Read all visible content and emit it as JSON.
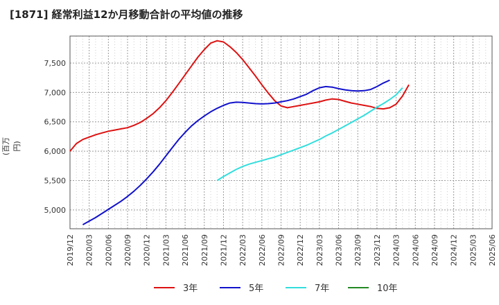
{
  "chart_data": {
    "type": "line",
    "title": "[1871]  経常利益12か月移動合計の平均値の推移",
    "ylabel": "(百万円)",
    "xlabel": "",
    "ylim": [
      4680,
      7960
    ],
    "yticks": [
      5000,
      5500,
      6000,
      6500,
      7000,
      7500
    ],
    "ytick_labels": [
      "5,000",
      "5,500",
      "6,000",
      "6,500",
      "7,000",
      "7,500"
    ],
    "xlim": [
      0,
      66
    ],
    "xticks": [
      0,
      3,
      6,
      9,
      12,
      15,
      18,
      21,
      24,
      27,
      30,
      33,
      36,
      39,
      42,
      45,
      48,
      51,
      54,
      57,
      60,
      63,
      66
    ],
    "xtick_labels": [
      "2019/12",
      "2020/03",
      "2020/06",
      "2020/09",
      "2020/12",
      "2021/03",
      "2021/06",
      "2021/09",
      "2021/12",
      "2022/03",
      "2022/06",
      "2022/09",
      "2022/12",
      "2023/03",
      "2023/06",
      "2023/09",
      "2023/12",
      "2024/03",
      "2024/06",
      "2024/09",
      "2024/12",
      "2025/03",
      "2025/06"
    ],
    "grid": true,
    "series": [
      {
        "name": "3年",
        "color": "#dd1111",
        "x": [
          0,
          1,
          2,
          3,
          4,
          5,
          6,
          7,
          8,
          9,
          10,
          11,
          12,
          13,
          14,
          15,
          16,
          17,
          18,
          19,
          20,
          21,
          22,
          23,
          24,
          25,
          26,
          27,
          28,
          29,
          30,
          31,
          32,
          33,
          34,
          35,
          36,
          37,
          38,
          39,
          40,
          41,
          42,
          43,
          44,
          45,
          46,
          47,
          48,
          49,
          50,
          51,
          52,
          53,
          54,
          55,
          56,
          57,
          58,
          59,
          60
        ],
        "values": [
          6000,
          6130,
          6200,
          6240,
          6280,
          6310,
          6340,
          6360,
          6380,
          6400,
          6440,
          6490,
          6560,
          6640,
          6740,
          6860,
          7000,
          7150,
          7300,
          7450,
          7600,
          7730,
          7840,
          7880,
          7860,
          7780,
          7680,
          7560,
          7420,
          7280,
          7130,
          6990,
          6860,
          6770,
          6740,
          6760,
          6780,
          6800,
          6820,
          6840,
          6870,
          6890,
          6880,
          6850,
          6820,
          6800,
          6780,
          6760,
          6730,
          6720,
          6740,
          6800,
          6940,
          7130,
          null,
          null,
          null,
          null,
          null,
          null,
          null
        ]
      },
      {
        "name": "5年",
        "color": "#1111cc",
        "x": [
          2,
          3,
          4,
          5,
          6,
          7,
          8,
          9,
          10,
          11,
          12,
          13,
          14,
          15,
          16,
          17,
          18,
          19,
          20,
          21,
          22,
          23,
          24,
          25,
          26,
          27,
          28,
          29,
          30,
          31,
          32,
          33,
          34,
          35,
          36,
          37,
          38,
          39,
          40,
          41,
          42,
          43,
          44,
          45,
          46,
          47,
          48,
          49,
          50,
          51,
          52,
          53,
          54,
          55,
          56
        ],
        "values": [
          4750,
          4810,
          4870,
          4940,
          5010,
          5080,
          5150,
          5230,
          5320,
          5420,
          5530,
          5650,
          5780,
          5920,
          6060,
          6200,
          6320,
          6430,
          6520,
          6600,
          6670,
          6730,
          6780,
          6820,
          6835,
          6830,
          6820,
          6810,
          6805,
          6810,
          6820,
          6840,
          6860,
          6890,
          6930,
          6970,
          7030,
          7080,
          7100,
          7090,
          7065,
          7045,
          7030,
          7025,
          7030,
          7050,
          7100,
          7160,
          7210,
          null,
          null,
          null,
          null,
          null,
          null
        ]
      },
      {
        "name": "7年",
        "color": "#33dddd",
        "x": [
          23,
          24,
          25,
          26,
          27,
          28,
          29,
          30,
          31,
          32,
          33,
          34,
          35,
          36,
          37,
          38,
          39,
          40,
          41,
          42,
          43,
          44,
          45,
          46,
          47,
          48,
          49,
          50,
          51,
          52,
          53,
          54,
          55,
          56
        ],
        "values": [
          5500,
          5570,
          5630,
          5690,
          5740,
          5780,
          5810,
          5840,
          5870,
          5900,
          5940,
          5980,
          6020,
          6060,
          6100,
          6150,
          6200,
          6260,
          6310,
          6370,
          6430,
          6490,
          6550,
          6610,
          6680,
          6750,
          6810,
          6880,
          6960,
          7080,
          null,
          null,
          null,
          null
        ]
      },
      {
        "name": "10年",
        "color": "#228822",
        "x": [],
        "values": []
      }
    ]
  }
}
